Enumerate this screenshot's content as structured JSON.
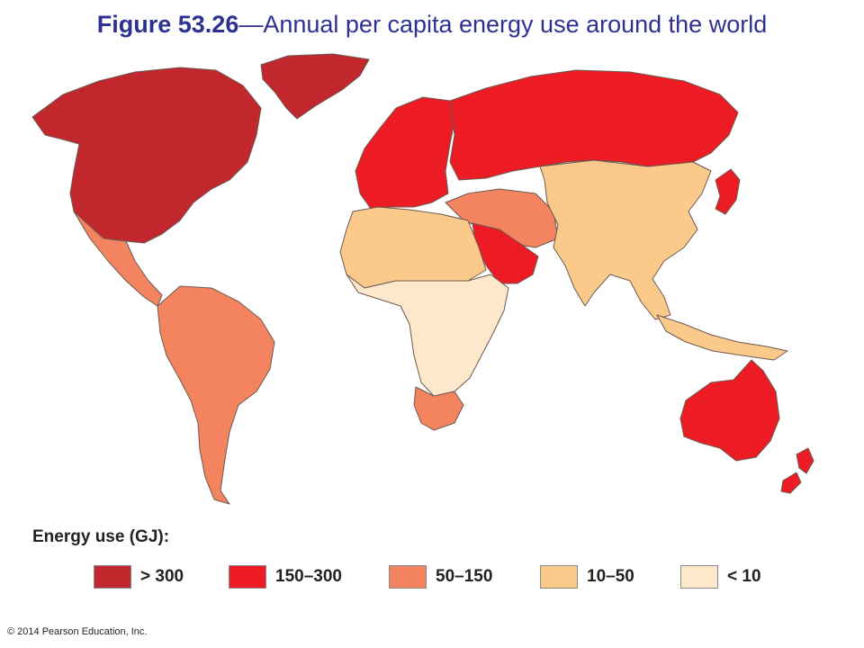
{
  "title": {
    "figure_number": "Figure 53.26",
    "text": "—Annual per capita energy use around the world"
  },
  "legend": {
    "title": "Energy use (GJ):",
    "items": [
      {
        "label": "> 300",
        "color": "#c1272d"
      },
      {
        "label": "150–300",
        "color": "#ed1c24"
      },
      {
        "label": "50–150",
        "color": "#f4845f"
      },
      {
        "label": "10–50",
        "color": "#fbc98a"
      },
      {
        "label": "< 10",
        "color": "#fde8cc"
      }
    ]
  },
  "regions": [
    {
      "name": "north-america",
      "category": "> 300"
    },
    {
      "name": "greenland",
      "category": "> 300"
    },
    {
      "name": "mexico-central-america",
      "category": "50–150"
    },
    {
      "name": "south-america",
      "category": "50–150"
    },
    {
      "name": "europe",
      "category": "150–300"
    },
    {
      "name": "russia",
      "category": "150–300"
    },
    {
      "name": "middle-east",
      "category": "50–150"
    },
    {
      "name": "saudi-arabia",
      "category": "150–300"
    },
    {
      "name": "north-africa",
      "category": "10–50"
    },
    {
      "name": "sub-saharan-africa",
      "category": "< 10"
    },
    {
      "name": "south-africa",
      "category": "50–150"
    },
    {
      "name": "asia",
      "category": "10–50"
    },
    {
      "name": "japan",
      "category": "150–300"
    },
    {
      "name": "australia",
      "category": "150–300"
    },
    {
      "name": "new-zealand",
      "category": "150–300"
    }
  ],
  "copyright": "© 2014 Pearson Education, Inc."
}
